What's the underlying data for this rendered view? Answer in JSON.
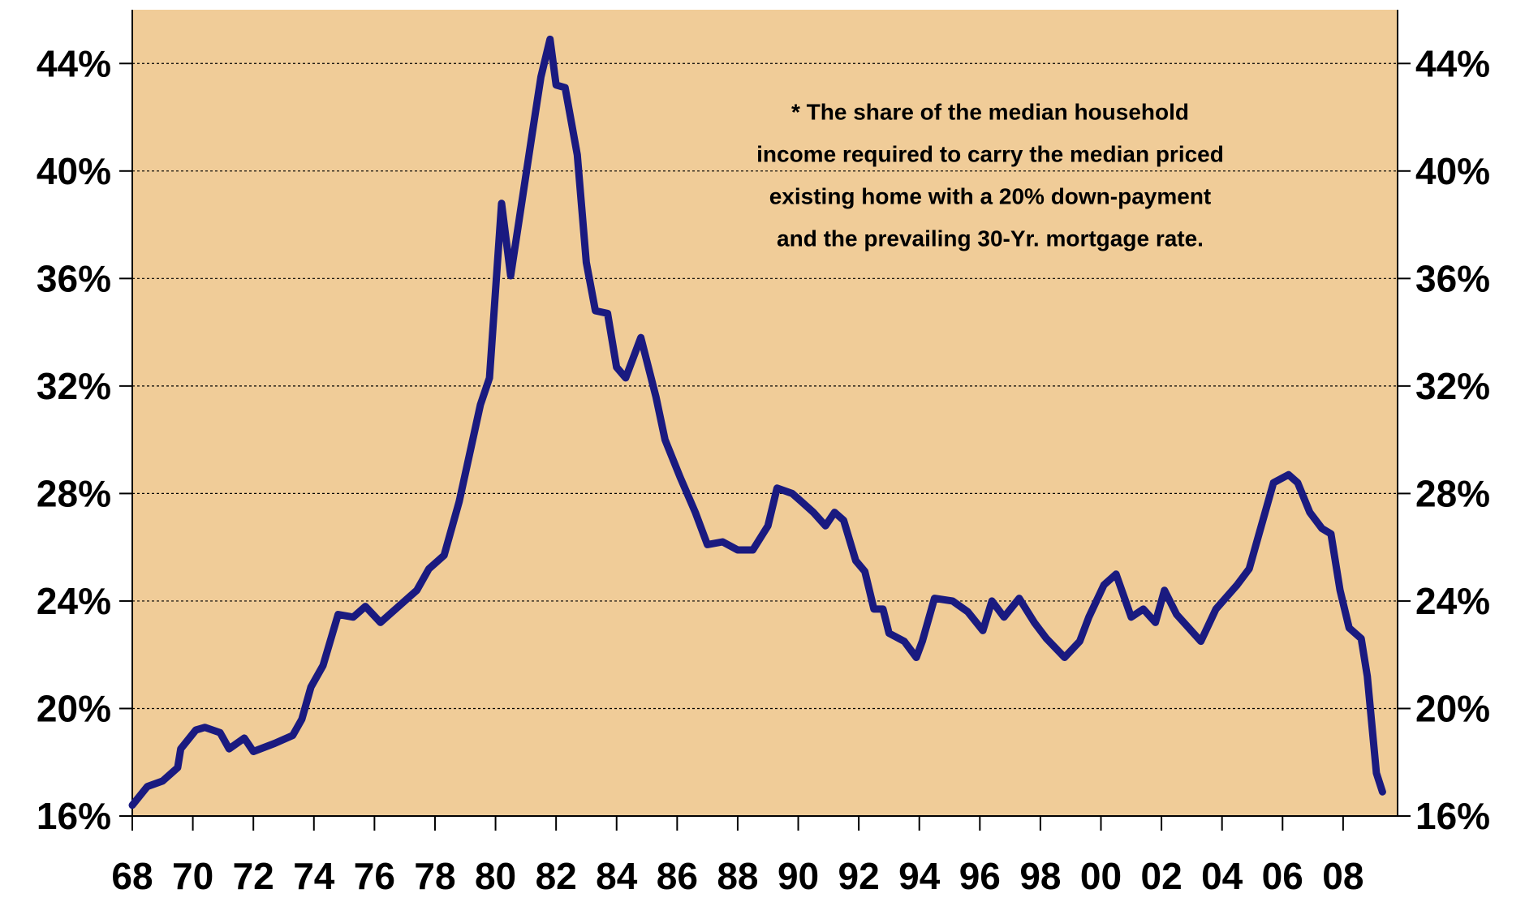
{
  "chart_data": {
    "type": "line",
    "annotation": [
      "* The share of the median household",
      "income required to carry the median priced",
      "existing home with a 20% down-payment",
      "and the prevailing 30-Yr. mortgage rate."
    ],
    "xlim": [
      1968,
      2009.8
    ],
    "ylim": [
      16,
      46
    ],
    "xticks": [
      {
        "value": 1968,
        "label": "68"
      },
      {
        "value": 1970,
        "label": "70"
      },
      {
        "value": 1972,
        "label": "72"
      },
      {
        "value": 1974,
        "label": "74"
      },
      {
        "value": 1976,
        "label": "76"
      },
      {
        "value": 1978,
        "label": "78"
      },
      {
        "value": 1980,
        "label": "80"
      },
      {
        "value": 1982,
        "label": "82"
      },
      {
        "value": 1984,
        "label": "84"
      },
      {
        "value": 1986,
        "label": "86"
      },
      {
        "value": 1988,
        "label": "88"
      },
      {
        "value": 1990,
        "label": "90"
      },
      {
        "value": 1992,
        "label": "92"
      },
      {
        "value": 1994,
        "label": "94"
      },
      {
        "value": 1996,
        "label": "96"
      },
      {
        "value": 1998,
        "label": "98"
      },
      {
        "value": 2000,
        "label": "00"
      },
      {
        "value": 2002,
        "label": "02"
      },
      {
        "value": 2004,
        "label": "04"
      },
      {
        "value": 2006,
        "label": "06"
      },
      {
        "value": 2008,
        "label": "08"
      }
    ],
    "yticks": [
      {
        "value": 16,
        "label": "16%"
      },
      {
        "value": 20,
        "label": "20%"
      },
      {
        "value": 24,
        "label": "24%"
      },
      {
        "value": 28,
        "label": "28%"
      },
      {
        "value": 32,
        "label": "32%"
      },
      {
        "value": 36,
        "label": "36%"
      },
      {
        "value": 40,
        "label": "40%"
      },
      {
        "value": 44,
        "label": "44%"
      }
    ],
    "grid": true,
    "background": "#f0cc98",
    "series": [
      {
        "color": "#1a1a80",
        "x": [
          1968.0,
          1968.5,
          1969.0,
          1969.5,
          1969.6,
          1970.1,
          1970.4,
          1970.9,
          1971.2,
          1971.7,
          1972.0,
          1972.7,
          1973.3,
          1973.6,
          1973.9,
          1974.3,
          1974.8,
          1975.3,
          1975.7,
          1976.2,
          1976.9,
          1977.4,
          1977.8,
          1978.3,
          1978.8,
          1979.5,
          1979.8,
          1980.2,
          1980.5,
          1981.2,
          1981.5,
          1981.8,
          1982.0,
          1982.3,
          1982.7,
          1983.0,
          1983.3,
          1983.7,
          1984.0,
          1984.3,
          1984.8,
          1985.3,
          1985.6,
          1986.1,
          1986.6,
          1987.0,
          1987.5,
          1988.0,
          1988.5,
          1989.0,
          1989.3,
          1989.8,
          1990.1,
          1990.5,
          1990.9,
          1991.2,
          1991.5,
          1991.9,
          1992.2,
          1992.5,
          1992.8,
          1993.0,
          1993.5,
          1993.9,
          1994.1,
          1994.5,
          1995.1,
          1995.6,
          1996.1,
          1996.4,
          1996.8,
          1997.3,
          1997.8,
          1998.2,
          1998.8,
          1999.3,
          1999.6,
          2000.1,
          2000.5,
          2001.0,
          2001.4,
          2001.8,
          2002.1,
          2002.5,
          2003.3,
          2003.8,
          2004.5,
          2004.9,
          2005.2,
          2005.7,
          2006.2,
          2006.5,
          2006.9,
          2007.3,
          2007.6,
          2007.9,
          2008.2,
          2008.6,
          2008.8,
          2009.1,
          2009.3
        ],
        "values": [
          16.4,
          17.1,
          17.3,
          17.8,
          18.5,
          19.2,
          19.3,
          19.1,
          18.5,
          18.9,
          18.4,
          18.7,
          19.0,
          19.6,
          20.8,
          21.6,
          23.5,
          23.4,
          23.8,
          23.2,
          23.9,
          24.4,
          25.2,
          25.7,
          27.7,
          31.3,
          32.3,
          38.8,
          36.1,
          41.3,
          43.5,
          44.9,
          43.2,
          43.1,
          40.6,
          36.6,
          34.8,
          34.7,
          32.7,
          32.3,
          33.8,
          31.6,
          30.0,
          28.6,
          27.3,
          26.1,
          26.2,
          25.9,
          25.9,
          26.8,
          28.2,
          28.0,
          27.7,
          27.3,
          26.8,
          27.3,
          27.0,
          25.5,
          25.1,
          23.7,
          23.7,
          22.8,
          22.5,
          21.9,
          22.5,
          24.1,
          24.0,
          23.6,
          22.9,
          24.0,
          23.4,
          24.1,
          23.2,
          22.6,
          21.9,
          22.5,
          23.4,
          24.6,
          25.0,
          23.4,
          23.7,
          23.2,
          24.4,
          23.5,
          22.5,
          23.7,
          24.6,
          25.2,
          26.4,
          28.4,
          28.7,
          28.4,
          27.3,
          26.7,
          26.5,
          24.4,
          23.0,
          22.6,
          21.2,
          17.6,
          16.9
        ]
      }
    ]
  }
}
